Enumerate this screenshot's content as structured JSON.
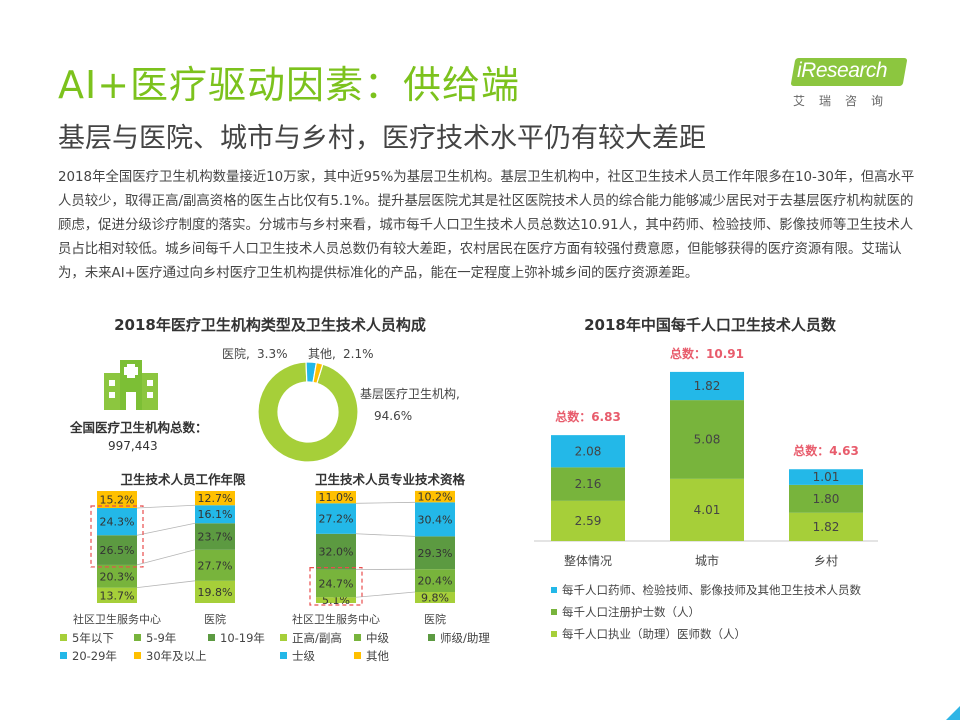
{
  "header": {
    "title": "AI+医疗驱动因素：供给端",
    "subtitle": "基层与医院、城市与乡村，医疗技术水平仍有较大差距",
    "logo_text": "iResearch",
    "logo_sub": "艾瑞咨询"
  },
  "body_text": "2018年全国医疗卫生机构数量接近10万家，其中近95%为基层卫生机构。基层卫生机构中，社区卫生技术人员工作年限多在10-30年，但高水平人员较少，取得正高/副高资格的医生占比仅有5.1%。提升基层医院尤其是社区医院技术人员的综合能力能够减少居民对于去基层医疗机构就医的顾虑，促进分级诊疗制度的落实。分城市与乡村来看，城市每千人口卫生技术人员总数达10.91人，其中药师、检验技师、影像技师等卫生技术人员占比相对较低。城乡间每千人口卫生技术人员总数仍有较大差距，农村居民在医疗方面有较强付费意愿，但能够获得的医疗资源有限。艾瑞认为，未来AI+医疗通过向乡村医疗卫生机构提供标准化的产品，能在一定程度上弥补城乡间的医疗资源差距。",
  "colors": {
    "green_light": "#a6cf39",
    "green_mid": "#78b43c",
    "green_dark": "#5c9a41",
    "blue": "#23b8e8",
    "yellow": "#ffc000",
    "red_total": "#e85c6c"
  },
  "chart_data": [
    {
      "type": "pie",
      "title": "2018年医疗卫生机构类型及卫生技术人员构成",
      "total_label": "全国医疗卫生机构总数：",
      "total_value": "997,443",
      "icon": "hospital-icon",
      "slices": [
        {
          "name": "基层医疗卫生机构,",
          "value": 94.6,
          "label": "94.6%",
          "color": "#a6cf39"
        },
        {
          "name": "医院,",
          "value": 3.3,
          "label": "3.3%",
          "color": "#23b8e8"
        },
        {
          "name": "其他,",
          "value": 2.1,
          "label": "2.1%",
          "color": "#ffc000"
        }
      ]
    },
    {
      "type": "bar",
      "stacked": true,
      "normalized": true,
      "title": "卫生技术人员工作年限",
      "categories": [
        "社区卫生服务中心",
        "医院"
      ],
      "series": [
        {
          "name": "5年以下",
          "values": [
            13.7,
            19.8
          ],
          "labels": [
            "13.7%",
            "19.8%"
          ],
          "color": "#a6cf39"
        },
        {
          "name": "5-9年",
          "values": [
            20.3,
            27.7
          ],
          "labels": [
            "20.3%",
            "27.7%"
          ],
          "color": "#78b43c"
        },
        {
          "name": "10-19年",
          "values": [
            26.5,
            23.7
          ],
          "labels": [
            "26.5%",
            "23.7%"
          ],
          "color": "#5c9a41"
        },
        {
          "name": "20-29年",
          "values": [
            24.3,
            16.1
          ],
          "labels": [
            "24.3%",
            "16.1%"
          ],
          "color": "#23b8e8"
        },
        {
          "name": "30年及以上",
          "values": [
            15.2,
            12.7
          ],
          "labels": [
            "15.2%",
            "12.7%"
          ],
          "color": "#ffc000"
        }
      ],
      "highlight_series": [
        "10-19年",
        "20-29年"
      ]
    },
    {
      "type": "bar",
      "stacked": true,
      "normalized": true,
      "title": "卫生技术人员专业技术资格",
      "categories": [
        "社区卫生服务中心",
        "医院"
      ],
      "series": [
        {
          "name": "正高/副高",
          "values": [
            5.1,
            9.8
          ],
          "labels": [
            "5.1%",
            "9.8%"
          ],
          "color": "#a6cf39"
        },
        {
          "name": "中级",
          "values": [
            24.7,
            20.4
          ],
          "labels": [
            "24.7%",
            "20.4%"
          ],
          "color": "#78b43c"
        },
        {
          "name": "师级/助理",
          "values": [
            32.0,
            29.3
          ],
          "labels": [
            "32.0%",
            "29.3%"
          ],
          "color": "#5c9a41"
        },
        {
          "name": "士级",
          "values": [
            27.2,
            30.4
          ],
          "labels": [
            "27.2%",
            "30.4%"
          ],
          "color": "#23b8e8"
        },
        {
          "name": "其他",
          "values": [
            11.0,
            10.2
          ],
          "labels": [
            "11.0%",
            "10.2%"
          ],
          "color": "#ffc000"
        }
      ],
      "highlight_series": [
        "正高/副高",
        "中级"
      ]
    },
    {
      "type": "bar",
      "stacked": true,
      "title": "2018年中国每千人口卫生技术人员数",
      "categories": [
        "整体情况",
        "城市",
        "乡村"
      ],
      "ylim": [
        0,
        11.5
      ],
      "series": [
        {
          "name": "每千人口执业（助理）医师数（人）",
          "values": [
            2.59,
            4.01,
            1.82
          ],
          "labels": [
            "2.59",
            "4.01",
            "1.82"
          ],
          "color": "#a6cf39"
        },
        {
          "name": "每千人口注册护士数（人）",
          "values": [
            2.16,
            5.08,
            1.8
          ],
          "labels": [
            "2.16",
            "5.08",
            "1.80"
          ],
          "color": "#78b43c"
        },
        {
          "name": "每千人口药师、检验技师、影像技师及其他卫生技术人员数",
          "values": [
            2.08,
            1.82,
            1.01
          ],
          "labels": [
            "2.08",
            "1.82",
            "1.01"
          ],
          "color": "#23b8e8"
        }
      ],
      "totals": [
        "总数：6.83",
        "总数：10.91",
        "总数：4.63"
      ]
    }
  ]
}
